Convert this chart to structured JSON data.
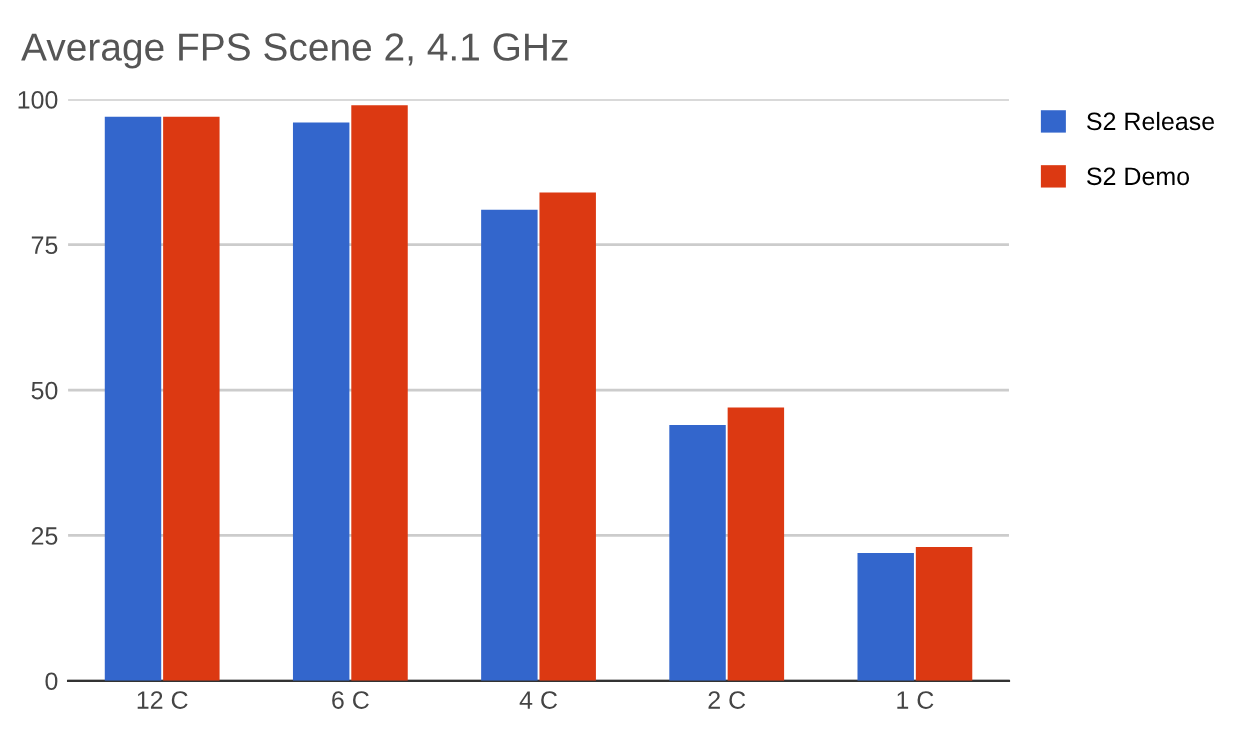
{
  "chart_data": {
    "type": "bar",
    "title": "Average FPS Scene 2, 4.1 GHz",
    "categories": [
      "12 C",
      "6 C",
      "4 C",
      "2 C",
      "1 C"
    ],
    "series": [
      {
        "name": "S2 Release",
        "color": "#3366cc",
        "values": [
          97,
          96,
          81,
          44,
          22
        ]
      },
      {
        "name": "S2 Demo",
        "color": "#dc3912",
        "values": [
          97,
          99,
          84,
          47,
          23
        ]
      }
    ],
    "ylim": [
      0,
      100
    ],
    "yticks": [
      0,
      25,
      50,
      75,
      100
    ],
    "grid": "y",
    "legend": "right"
  }
}
